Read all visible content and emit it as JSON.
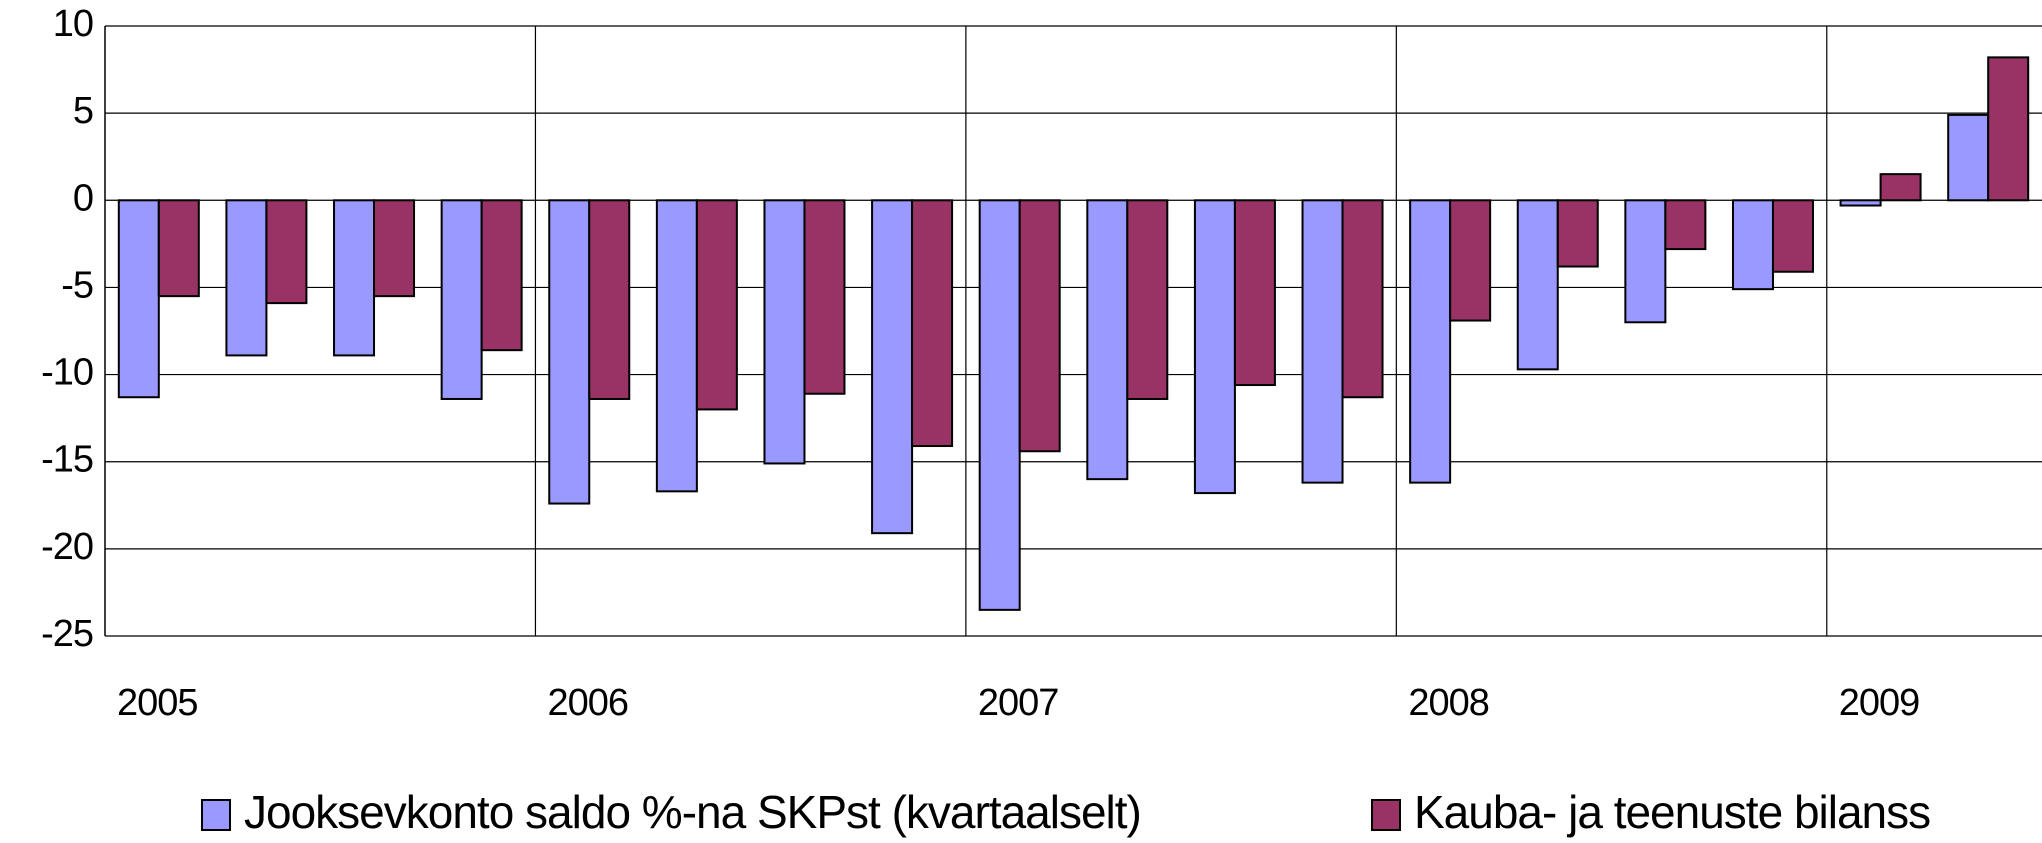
{
  "chart_data": {
    "type": "bar",
    "categories": [
      "2005",
      null,
      null,
      null,
      "2006",
      null,
      null,
      null,
      "2007",
      null,
      null,
      null,
      "2008",
      null,
      null,
      null,
      "2009",
      null
    ],
    "series": [
      {
        "name": "Jooksevkonto saldo %-na SKPst (kvartaalselt)",
        "color": "#9999ff",
        "values": [
          -11.3,
          -8.9,
          -8.9,
          -11.4,
          -17.4,
          -16.7,
          -15.1,
          -19.1,
          -23.5,
          -16.0,
          -16.8,
          -16.2,
          -16.2,
          -9.7,
          -7.0,
          -5.1,
          -0.3,
          4.9
        ]
      },
      {
        "name": "Kauba- ja teenuste bilanss",
        "color": "#993366",
        "values": [
          -5.5,
          -5.9,
          -5.5,
          -8.6,
          -11.4,
          -12.0,
          -11.1,
          -14.1,
          -14.4,
          -11.4,
          -10.6,
          -11.3,
          -6.9,
          -3.8,
          -2.8,
          -4.1,
          1.5,
          8.2
        ]
      }
    ],
    "ylim": [
      -25,
      10
    ],
    "yticks": [
      -25,
      -20,
      -15,
      -10,
      -5,
      0,
      5,
      10
    ],
    "grid": true
  }
}
